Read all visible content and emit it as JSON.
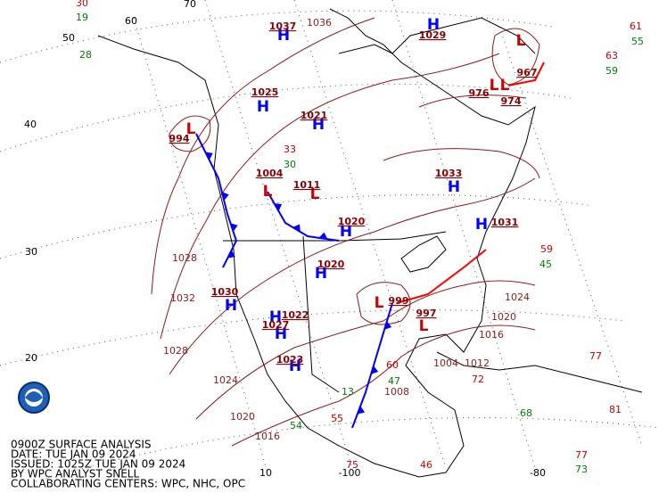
{
  "caption": [
    "0900Z SURFACE ANALYSIS",
    "DATE: TUE JAN 09 2024",
    "ISSUED: 1025Z TUE JAN 09 2024",
    "BY WPC ANALYST SNELL",
    "COLLABORATING CENTERS: WPC, NHC, OPC"
  ],
  "grid_labels": [
    "50",
    "40",
    "30",
    "20",
    "60",
    "70",
    "10",
    "-100",
    "-80"
  ],
  "pressure_centers": [
    {
      "symbol": "H",
      "value": "1037"
    },
    {
      "symbol": "H",
      "value": "1025"
    },
    {
      "symbol": "L",
      "value": "994"
    },
    {
      "symbol": "H",
      "value": "1021"
    },
    {
      "symbol": "L",
      "value": "1011"
    },
    {
      "symbol": "H",
      "value": "1020"
    },
    {
      "symbol": "H",
      "value": "1020"
    },
    {
      "symbol": "H",
      "value": "1030"
    },
    {
      "symbol": "H",
      "value": "1022"
    },
    {
      "symbol": "H",
      "value": "1023"
    },
    {
      "symbol": "L",
      "value": "997"
    },
    {
      "symbol": "L",
      "value": "999"
    },
    {
      "symbol": "H",
      "value": "1033"
    },
    {
      "symbol": "H",
      "value": "1031"
    },
    {
      "symbol": "L",
      "value": "974"
    },
    {
      "symbol": "L",
      "value": "967"
    },
    {
      "symbol": "L",
      "value": "976"
    },
    {
      "symbol": "H",
      "value": "1029"
    },
    {
      "symbol": "L",
      "value": "1004"
    },
    {
      "symbol": "H",
      "value": "1027"
    }
  ],
  "isobar_labels": [
    "1032",
    "1028",
    "1028",
    "1024",
    "1020",
    "1016",
    "1024",
    "1020",
    "1016",
    "1012",
    "1004",
    "1008",
    "1036"
  ],
  "stations": [
    {
      "kind": "temperature",
      "value": "30"
    },
    {
      "kind": "dewpoint",
      "value": "19"
    },
    {
      "kind": "dewpoint",
      "value": "28"
    },
    {
      "kind": "temperature",
      "value": "61"
    },
    {
      "kind": "dewpoint",
      "value": "55"
    },
    {
      "kind": "temperature",
      "value": "63"
    },
    {
      "kind": "dewpoint",
      "value": "59"
    },
    {
      "kind": "temperature",
      "value": "59"
    },
    {
      "kind": "dewpoint",
      "value": "45"
    },
    {
      "kind": "temperature",
      "value": "77"
    },
    {
      "kind": "temperature",
      "value": "81"
    },
    {
      "kind": "temperature",
      "value": "77"
    },
    {
      "kind": "dewpoint",
      "value": "73"
    },
    {
      "kind": "temperature",
      "value": "33"
    },
    {
      "kind": "dewpoint",
      "value": "30"
    },
    {
      "kind": "temperature",
      "value": "55"
    },
    {
      "kind": "dewpoint",
      "value": "54"
    },
    {
      "kind": "temperature",
      "value": "75"
    },
    {
      "kind": "temperature",
      "value": "46"
    },
    {
      "kind": "dewpoint",
      "value": "68"
    },
    {
      "kind": "temperature",
      "value": "72"
    },
    {
      "kind": "dewpoint",
      "value": "47"
    },
    {
      "kind": "temperature",
      "value": "60"
    },
    {
      "kind": "dewpoint",
      "value": "13"
    }
  ]
}
